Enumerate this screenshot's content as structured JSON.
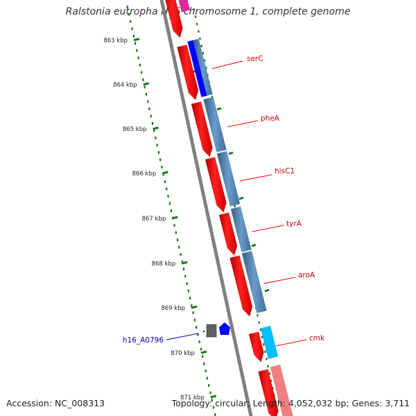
{
  "title": "Ralstonia eutropha H16 chromosome 1, complete genome",
  "footer": {
    "accession": "Accession: NC_008313",
    "summary": "Topology: circular; Length: 4,052,032 bp; Genes: 3,711"
  },
  "scale": {
    "unit": "kbp",
    "ticks": [
      "863 kbp",
      "864 kbp",
      "865 kbp",
      "866 kbp",
      "867 kbp",
      "868 kbp",
      "869 kbp",
      "870 kbp",
      "871 kbp"
    ]
  },
  "colors": {
    "cds_forward": "#ff0000",
    "cds_light": "#f08080",
    "gene_blue": "#4682b4",
    "gene_deep_blue": "#0000ff",
    "gene_cyan": "#00bfff",
    "gene_magenta": "#e0299a",
    "misc_gray": "#606060",
    "tick_green": "#1a7a1a",
    "backbone": "#808080",
    "label_red": "#cc0000",
    "label_blue": "#0000aa"
  },
  "gene_labels": [
    {
      "name": "serC",
      "color": "red"
    },
    {
      "name": "pheA",
      "color": "red"
    },
    {
      "name": "hisC1",
      "color": "red"
    },
    {
      "name": "tyrA",
      "color": "red"
    },
    {
      "name": "aroA",
      "color": "red"
    },
    {
      "name": "cmk",
      "color": "red"
    },
    {
      "name": "h16_A0796",
      "color": "blue"
    }
  ]
}
